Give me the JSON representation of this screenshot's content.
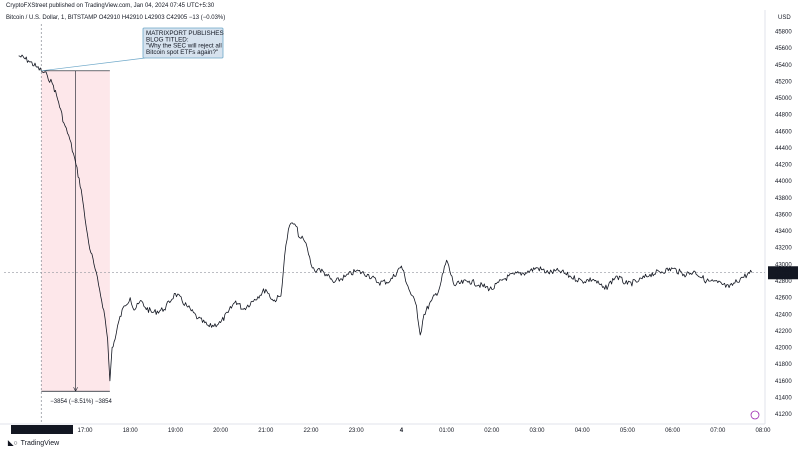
{
  "header": {
    "publisher": "CryptoFXStreet published on TradingView.com, Jan 04, 2024 07:45 UTC+5:30",
    "symbol_line": "Bitcoin / U.S. Dollar, 1, BITSTAMP  O42910  H42910  L42903  C42905  −13 (−0.03%)"
  },
  "chart_data": {
    "type": "line",
    "currency_label": "USD",
    "y_ticks": [
      "45800",
      "45600",
      "45400",
      "45200",
      "45000",
      "44800",
      "44600",
      "44400",
      "44200",
      "44000",
      "43800",
      "43600",
      "43400",
      "43200",
      "43000",
      "42800",
      "42600",
      "42400",
      "42200",
      "42000",
      "41800",
      "41600",
      "41400",
      "41200"
    ],
    "ylim": [
      41080,
      45915
    ],
    "x_ticks": [
      "17:00",
      "18:00",
      "19:00",
      "20:00",
      "21:00",
      "22:00",
      "23:00",
      "4",
      "01:00",
      "02:00",
      "03:00",
      "04:00",
      "05:00",
      "06:00",
      "07:00",
      "08:00"
    ],
    "crosshair_date_label": "Wed 03 Jan '24   16:02",
    "current_price_label": "42905",
    "current_countdown_label": "00:21",
    "current_price": 42905,
    "anchor_price": 45328,
    "low_price": 41474,
    "series": [
      {
        "x": [
          "15:32",
          "15:45",
          "15:55",
          "16:02",
          "16:10",
          "16:18",
          "16:25",
          "16:32",
          "16:40",
          "16:48",
          "16:55",
          "17:00",
          "17:05",
          "17:12",
          "17:18",
          "17:25",
          "17:30",
          "17:33",
          "17:36",
          "17:40",
          "17:45",
          "17:52",
          "18:00",
          "18:05",
          "18:15",
          "18:20",
          "18:30",
          "18:45",
          "19:00",
          "19:15",
          "19:30",
          "19:45",
          "20:00",
          "20:10",
          "20:20",
          "20:30",
          "20:45",
          "21:00",
          "21:10",
          "21:20",
          "21:25",
          "21:30",
          "21:35",
          "21:40",
          "21:45",
          "21:50",
          "21:55",
          "22:00",
          "22:05",
          "22:10",
          "22:20",
          "22:30",
          "22:45",
          "23:00",
          "23:15",
          "23:30",
          "23:45",
          "00:00",
          "00:10",
          "00:20",
          "00:25",
          "00:30",
          "00:40",
          "00:50",
          "01:00",
          "01:10",
          "01:30",
          "02:00",
          "02:15",
          "02:30",
          "02:45",
          "03:00",
          "03:15",
          "03:30",
          "03:45",
          "04:00",
          "04:15",
          "04:30",
          "04:45",
          "05:00",
          "05:15",
          "05:30",
          "06:00",
          "06:15",
          "06:30",
          "06:45",
          "07:00",
          "07:15",
          "07:30",
          "07:45"
        ],
        "y": [
          45510,
          45450,
          45380,
          45328,
          45270,
          45150,
          44950,
          44700,
          44500,
          44200,
          43900,
          43550,
          43250,
          43000,
          42750,
          42450,
          42100,
          41600,
          42000,
          42100,
          42320,
          42500,
          42600,
          42450,
          42560,
          42480,
          42420,
          42460,
          42650,
          42500,
          42350,
          42250,
          42300,
          42420,
          42560,
          42460,
          42580,
          42700,
          42560,
          42620,
          43100,
          43420,
          43500,
          43460,
          43320,
          43300,
          43200,
          43000,
          42920,
          42950,
          42880,
          42780,
          42850,
          42920,
          42880,
          42780,
          42800,
          42980,
          42700,
          42500,
          42150,
          42400,
          42560,
          42700,
          43050,
          42750,
          42800,
          42700,
          42820,
          42880,
          42900,
          42960,
          42900,
          42920,
          42850,
          42800,
          42820,
          42700,
          42860,
          42760,
          42800,
          42880,
          42950,
          42880,
          42910,
          42800,
          42780,
          42720,
          42830,
          42905
        ]
      }
    ],
    "range_measure_label": "−3854 (−8.51%) −3854",
    "annotation": {
      "lines": [
        "MATRIXPORT PUBLISHES",
        "BLOG TITLED:",
        "\"Why the SEC will reject all",
        "Bitcoin spot ETFs again?\""
      ]
    },
    "colors": {
      "line": "#131722",
      "range_fill": "#fde7ea",
      "callout_fill": "#d6e2ee",
      "callout_border": "#6ea8c9",
      "price_tag": "#131722"
    }
  },
  "footer": {
    "brand": "TradingView"
  }
}
